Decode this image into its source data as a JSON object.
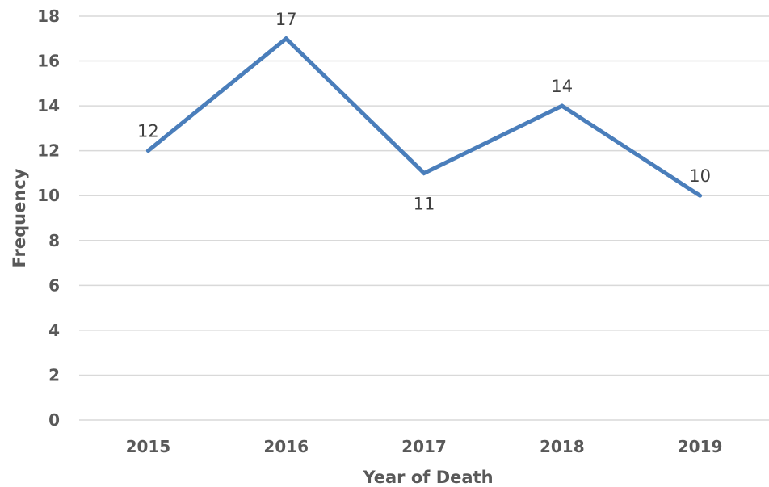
{
  "chart_data": {
    "type": "line",
    "title": "",
    "xlabel": "Year of Death",
    "ylabel": "Frequency",
    "categories": [
      "2015",
      "2016",
      "2017",
      "2018",
      "2019"
    ],
    "series": [
      {
        "values": [
          12,
          17,
          11,
          14,
          10
        ]
      }
    ],
    "data_labels": [
      "12",
      "17",
      "11",
      "14",
      "10"
    ],
    "yticks": [
      "0",
      "2",
      "4",
      "6",
      "8",
      "10",
      "12",
      "14",
      "16",
      "18"
    ],
    "ylim": [
      0,
      18
    ],
    "ytick_step": 2,
    "grid": true,
    "legend": "none",
    "colors": {
      "line": "#4a7ebb",
      "grid": "#d9d9d9",
      "text": "#595959"
    }
  }
}
